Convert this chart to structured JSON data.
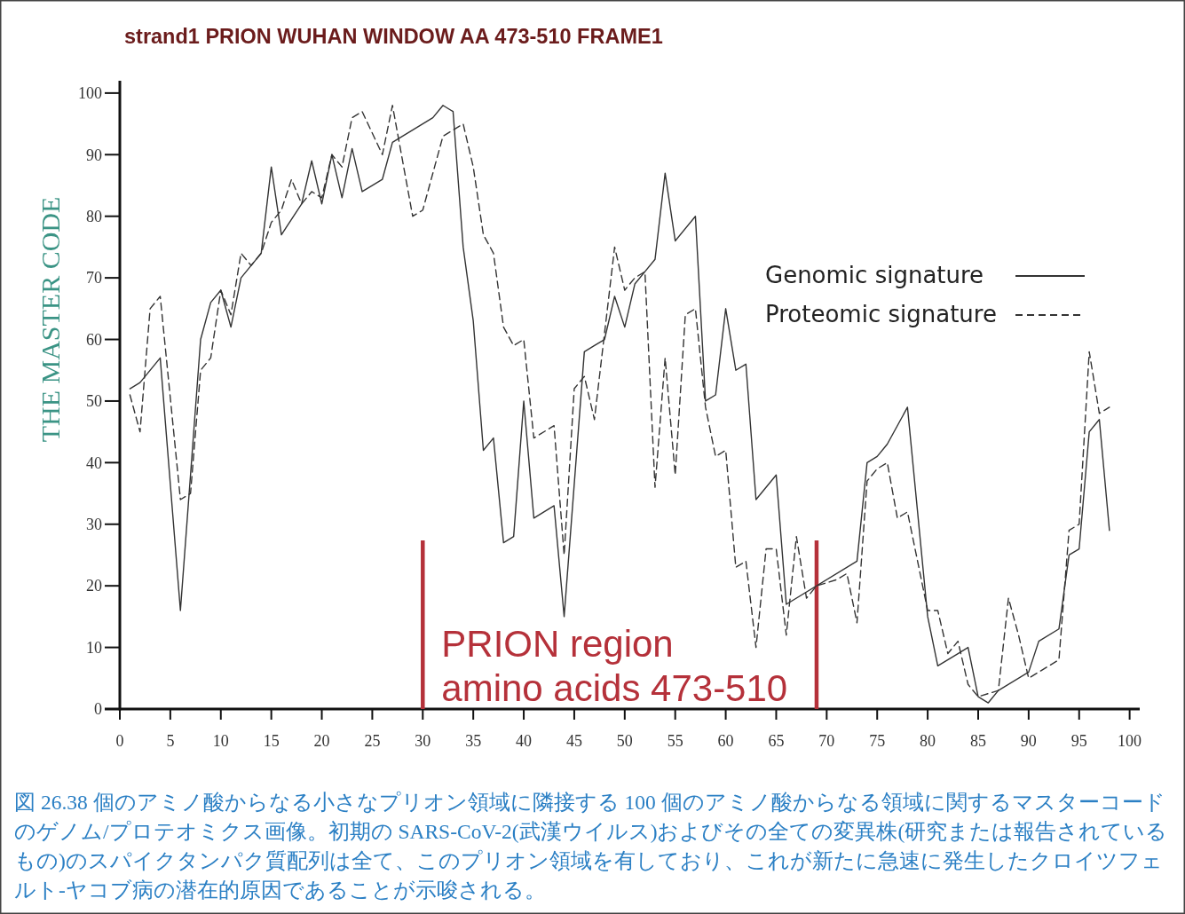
{
  "chart_data": {
    "type": "line",
    "title": "strand1 PRION WUHAN WINDOW AA 473-510 FRAME1",
    "ylabel": "THE MASTER CODE",
    "xlim": [
      0,
      101
    ],
    "xticks": [
      0,
      5,
      10,
      15,
      20,
      25,
      30,
      35,
      40,
      45,
      50,
      55,
      60,
      65,
      70,
      75,
      80,
      85,
      90,
      95,
      100
    ],
    "ylim": [
      0,
      102
    ],
    "yticks": [
      0,
      10,
      20,
      30,
      40,
      50,
      60,
      70,
      80,
      90,
      100
    ],
    "legend": "top right",
    "series": [
      {
        "name": "Genomic signature",
        "color": "#333333",
        "line_style": "solid",
        "x": [
          1,
          2,
          4,
          6,
          8,
          9,
          10,
          11,
          12,
          14,
          15,
          16,
          18,
          19,
          20,
          21,
          22,
          23,
          24,
          26,
          27,
          31,
          32,
          33,
          34,
          35,
          36,
          37,
          38,
          39,
          40,
          41,
          43,
          44,
          46,
          47,
          48,
          49,
          50,
          51,
          52,
          53,
          54,
          55,
          57,
          58,
          59,
          60,
          61,
          62,
          63,
          65,
          66,
          73,
          74,
          75,
          76,
          78,
          80,
          81,
          83,
          84,
          85,
          86,
          87,
          90,
          91,
          93,
          94,
          95,
          96,
          97,
          98
        ],
        "values": [
          52,
          53,
          57,
          16,
          60,
          66,
          68,
          62,
          70,
          74,
          88,
          77,
          82,
          89,
          82,
          90,
          83,
          91,
          84,
          86,
          92,
          96,
          98,
          97,
          75,
          63,
          42,
          44,
          27,
          28,
          50,
          31,
          33,
          15,
          58,
          59,
          60,
          67,
          62,
          69,
          71,
          73,
          87,
          76,
          80,
          50,
          51,
          65,
          55,
          56,
          34,
          38,
          17,
          24,
          40,
          41,
          43,
          49,
          15,
          7,
          9,
          10,
          2,
          1,
          3,
          6,
          11,
          13,
          25,
          26,
          45,
          47,
          29
        ]
      },
      {
        "name": "Proteomic signature",
        "color": "#333333",
        "line_style": "dashed",
        "x": [
          1,
          2,
          3,
          4,
          6,
          7,
          8,
          9,
          10,
          11,
          12,
          13,
          14,
          15,
          16,
          17,
          18,
          19,
          20,
          21,
          22,
          23,
          24,
          26,
          27,
          29,
          30,
          32,
          33,
          34,
          35,
          36,
          37,
          38,
          39,
          40,
          41,
          43,
          44,
          45,
          46,
          47,
          49,
          50,
          51,
          52,
          53,
          54,
          55,
          56,
          57,
          58,
          59,
          60,
          61,
          62,
          63,
          64,
          65,
          66,
          67,
          68,
          69,
          71,
          72,
          73,
          74,
          75,
          76,
          77,
          78,
          80,
          81,
          82,
          83,
          84,
          85,
          87,
          88,
          89,
          90,
          92,
          93,
          94,
          95,
          96,
          97,
          98
        ],
        "values": [
          51,
          45,
          65,
          67,
          34,
          35,
          55,
          57,
          68,
          64,
          74,
          72,
          74,
          79,
          81,
          86,
          82,
          84,
          83,
          90,
          88,
          96,
          97,
          90,
          98,
          80,
          81,
          93,
          94,
          95,
          88,
          77,
          74,
          62,
          59,
          60,
          44,
          46,
          25,
          52,
          54,
          47,
          75,
          68,
          70,
          71,
          36,
          57,
          38,
          64,
          65,
          49,
          41,
          42,
          23,
          24,
          10,
          26,
          26,
          12,
          28,
          18,
          20,
          21,
          22,
          14,
          37,
          39,
          40,
          31,
          32,
          16,
          16,
          9,
          11,
          4,
          2,
          3,
          18,
          12,
          5,
          7,
          8,
          29,
          30,
          58,
          48,
          49
        ]
      }
    ],
    "ref_lines": [
      {
        "axis": "x",
        "value": 30,
        "color": "#b5313a"
      },
      {
        "axis": "x",
        "value": 69,
        "color": "#b5313a"
      }
    ],
    "annotations": [
      "PRION region\namino acids 473-510",
      "図 26.38 個のアミノ酸からなる小さなプリオン領域に隣接する 100 個のアミノ酸からなる領域に関するマスターコードのゲノム/プロテオミクス画像。初期の SARS-CoV-2(武漢ウイルス)およびその全ての変異株(研究または報告されているもの)のスパイクタンパク質配列は全て、このプリオン領域を有しており、これが新たに急速に発生したクロイツフェルト-ヤコブ病の潜在的原因であることが示唆される。"
    ]
  }
}
